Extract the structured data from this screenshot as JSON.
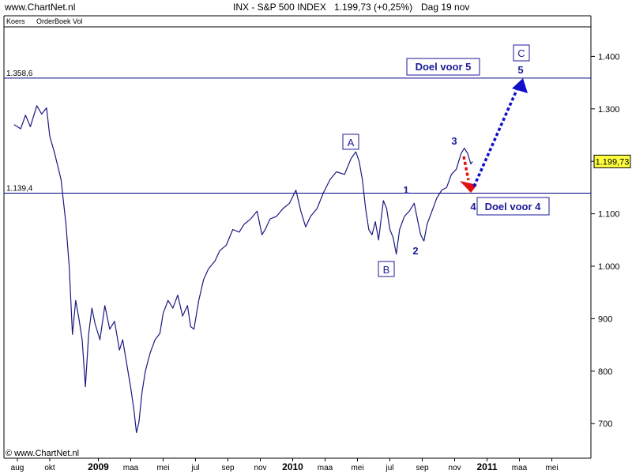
{
  "header": {
    "site": "www.ChartNet.nl",
    "instrument": "INX - S&P 500 INDEX",
    "last": "1.199,73 (+0,25%)",
    "period": "Dag  19 nov"
  },
  "tabs": [
    "Koers",
    "OrderBoek Vol"
  ],
  "watermark": "© www.ChartNet.nl",
  "colors": {
    "price_line": "#1a1a80",
    "label_text": "#1a1a99",
    "up_arrow": "#1010cc",
    "down_arrow": "#e01010",
    "grid": "#000000"
  },
  "chart_data": {
    "type": "line",
    "title": "INX - S&P 500 INDEX",
    "ylim": [
      665,
      1470
    ],
    "y_ticks": [
      {
        "value": 700,
        "label": "700"
      },
      {
        "value": 800,
        "label": "800"
      },
      {
        "value": 900,
        "label": "900"
      },
      {
        "value": 1000,
        "label": "1.000"
      },
      {
        "value": 1100,
        "label": "1.100"
      },
      {
        "value": 1200,
        "label": "1.200"
      },
      {
        "value": 1300,
        "label": "1.300"
      },
      {
        "value": 1400,
        "label": "1.400"
      }
    ],
    "x_ticks": [
      {
        "t": 0,
        "label": "aug"
      },
      {
        "t": 2,
        "label": "okt"
      },
      {
        "t": 5,
        "label": "2009",
        "bold": true
      },
      {
        "t": 7,
        "label": "maa"
      },
      {
        "t": 9,
        "label": "mei"
      },
      {
        "t": 11,
        "label": "jul"
      },
      {
        "t": 13,
        "label": "sep"
      },
      {
        "t": 15,
        "label": "nov"
      },
      {
        "t": 17,
        "label": "2010",
        "bold": true
      },
      {
        "t": 19,
        "label": "maa"
      },
      {
        "t": 21,
        "label": "mei"
      },
      {
        "t": 23,
        "label": "jul"
      },
      {
        "t": 25,
        "label": "sep"
      },
      {
        "t": 27,
        "label": "nov"
      },
      {
        "t": 29,
        "label": "2011",
        "bold": true
      },
      {
        "t": 31,
        "label": "maa"
      },
      {
        "t": 33,
        "label": "mei"
      }
    ],
    "hlines": [
      {
        "value": 1358.6,
        "label": "1.358,6"
      },
      {
        "value": 1139.4,
        "label": "1.139,4"
      }
    ],
    "last_value": {
      "value": 1199.73,
      "label": "1.199,73"
    },
    "series": [
      {
        "points": [
          [
            -0.2,
            1270
          ],
          [
            0.2,
            1262
          ],
          [
            0.5,
            1288
          ],
          [
            0.8,
            1266
          ],
          [
            1.2,
            1306
          ],
          [
            1.5,
            1290
          ],
          [
            1.8,
            1302
          ],
          [
            2.0,
            1248
          ],
          [
            2.3,
            1215
          ],
          [
            2.7,
            1165
          ],
          [
            3.0,
            1080
          ],
          [
            3.2,
            1000
          ],
          [
            3.4,
            870
          ],
          [
            3.6,
            935
          ],
          [
            3.8,
            900
          ],
          [
            4.0,
            860
          ],
          [
            4.2,
            770
          ],
          [
            4.4,
            870
          ],
          [
            4.6,
            920
          ],
          [
            4.8,
            890
          ],
          [
            5.1,
            860
          ],
          [
            5.4,
            925
          ],
          [
            5.7,
            880
          ],
          [
            6.0,
            895
          ],
          [
            6.3,
            840
          ],
          [
            6.5,
            860
          ],
          [
            6.8,
            805
          ],
          [
            7.0,
            768
          ],
          [
            7.2,
            725
          ],
          [
            7.35,
            683
          ],
          [
            7.5,
            702
          ],
          [
            7.7,
            760
          ],
          [
            7.9,
            800
          ],
          [
            8.2,
            835
          ],
          [
            8.5,
            860
          ],
          [
            8.8,
            872
          ],
          [
            9.0,
            910
          ],
          [
            9.3,
            935
          ],
          [
            9.6,
            920
          ],
          [
            9.9,
            945
          ],
          [
            10.2,
            905
          ],
          [
            10.5,
            925
          ],
          [
            10.7,
            885
          ],
          [
            10.9,
            880
          ],
          [
            11.2,
            935
          ],
          [
            11.5,
            975
          ],
          [
            11.8,
            995
          ],
          [
            12.2,
            1010
          ],
          [
            12.5,
            1030
          ],
          [
            12.9,
            1040
          ],
          [
            13.3,
            1070
          ],
          [
            13.7,
            1065
          ],
          [
            14.0,
            1080
          ],
          [
            14.4,
            1090
          ],
          [
            14.8,
            1105
          ],
          [
            15.1,
            1060
          ],
          [
            15.3,
            1070
          ],
          [
            15.6,
            1090
          ],
          [
            16.0,
            1095
          ],
          [
            16.4,
            1110
          ],
          [
            16.8,
            1120
          ],
          [
            17.2,
            1145
          ],
          [
            17.5,
            1105
          ],
          [
            17.8,
            1075
          ],
          [
            18.1,
            1095
          ],
          [
            18.5,
            1110
          ],
          [
            18.9,
            1140
          ],
          [
            19.3,
            1165
          ],
          [
            19.7,
            1180
          ],
          [
            20.2,
            1175
          ],
          [
            20.6,
            1205
          ],
          [
            20.9,
            1218
          ],
          [
            21.1,
            1200
          ],
          [
            21.3,
            1165
          ],
          [
            21.5,
            1110
          ],
          [
            21.7,
            1070
          ],
          [
            21.9,
            1060
          ],
          [
            22.1,
            1085
          ],
          [
            22.3,
            1050
          ],
          [
            22.6,
            1125
          ],
          [
            22.8,
            1110
          ],
          [
            23.0,
            1070
          ],
          [
            23.2,
            1055
          ],
          [
            23.4,
            1023
          ],
          [
            23.6,
            1070
          ],
          [
            23.9,
            1095
          ],
          [
            24.2,
            1105
          ],
          [
            24.5,
            1120
          ],
          [
            24.7,
            1090
          ],
          [
            24.9,
            1060
          ],
          [
            25.1,
            1048
          ],
          [
            25.3,
            1080
          ],
          [
            25.6,
            1105
          ],
          [
            25.9,
            1130
          ],
          [
            26.2,
            1145
          ],
          [
            26.5,
            1150
          ],
          [
            26.8,
            1175
          ],
          [
            27.1,
            1185
          ],
          [
            27.4,
            1215
          ],
          [
            27.6,
            1225
          ],
          [
            27.8,
            1215
          ],
          [
            28.0,
            1195
          ],
          [
            28.1,
            1199.73
          ]
        ]
      }
    ],
    "annotations": [
      {
        "text": "A",
        "boxed": true
      },
      {
        "text": "B",
        "boxed": true
      },
      {
        "text": "C",
        "boxed": true
      },
      {
        "text": "1"
      },
      {
        "text": "2"
      },
      {
        "text": "3"
      },
      {
        "text": "4"
      },
      {
        "text": "5"
      },
      {
        "text": "Doel voor 5",
        "boxed": true
      },
      {
        "text": "Doel voor 4",
        "boxed": true
      }
    ]
  }
}
